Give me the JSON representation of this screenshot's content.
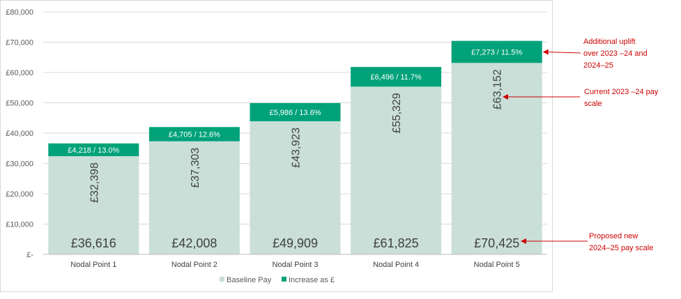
{
  "chart_data": {
    "type": "bar",
    "stacked": true,
    "categories": [
      "Nodal Point 1",
      "Nodal Point 2",
      "Nodal Point 3",
      "Nodal Point 4",
      "Nodal Point 5"
    ],
    "series": [
      {
        "name": "Baseline Pay",
        "values": [
          32398,
          37303,
          43923,
          55329,
          63152
        ],
        "color": "#c9dfd8",
        "labels": [
          "£32,398",
          "£37,303",
          "£43,923",
          "£55,329",
          "£63,152"
        ]
      },
      {
        "name": "Increase as £",
        "values": [
          4218,
          4705,
          5986,
          6496,
          7273
        ],
        "color": "#00a27a",
        "labels": [
          "£4,218 / 13.0%",
          "£4,705 / 12.6%",
          "£5,986 / 13.6%",
          "£6,496 / 11.7%",
          "£7,273 / 11.5%"
        ]
      }
    ],
    "totals": [
      "£36,616",
      "£42,008",
      "£49,909",
      "£61,825",
      "£70,425"
    ],
    "ylim": [
      0,
      80000
    ],
    "yticks": [
      0,
      10000,
      20000,
      30000,
      40000,
      50000,
      60000,
      70000,
      80000
    ],
    "ytick_labels": [
      "£-",
      "£10,000",
      "£20,000",
      "£30,000",
      "£40,000",
      "£50,000",
      "£60,000",
      "£70,000",
      "£80,000"
    ],
    "grid": true,
    "legend_position": "bottom",
    "annotations": [
      {
        "lines": [
          "Additional uplift",
          "over 2023 –24 and",
          "2024–25"
        ],
        "target": "increase"
      },
      {
        "lines": [
          "Current 2023 –24 pay",
          "scale"
        ],
        "target": "baseline"
      },
      {
        "lines": [
          "Proposed new",
          "2024–25 pay scale"
        ],
        "target": "total"
      }
    ],
    "annotation_color": "#cc0000"
  }
}
